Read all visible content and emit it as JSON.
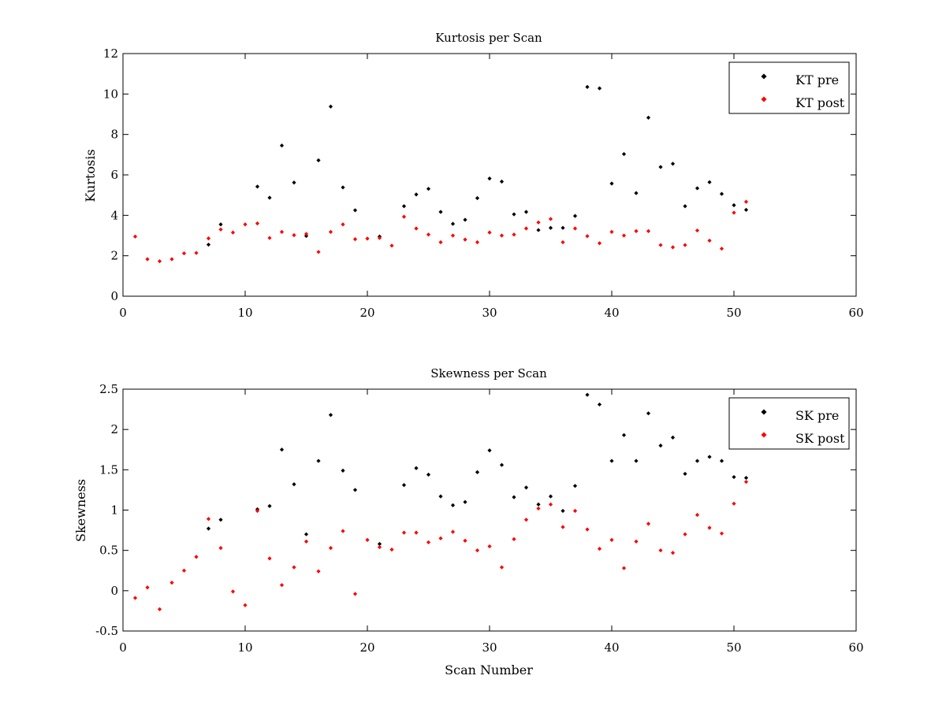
{
  "colors": {
    "pre": "#000000",
    "post": "#ff0000",
    "axes": "#000000",
    "background": "#ffffff"
  },
  "chart_data": [
    {
      "type": "scatter",
      "title": "Kurtosis per Scan",
      "xlabel": "",
      "ylabel": "Kurtosis",
      "xlim": [
        0,
        60
      ],
      "ylim": [
        0,
        12
      ],
      "xticks": [
        0,
        10,
        20,
        30,
        40,
        50,
        60
      ],
      "yticks": [
        0,
        2,
        4,
        6,
        8,
        10,
        12
      ],
      "grid": false,
      "legend": "top-right",
      "series": [
        {
          "name": "KT pre",
          "color": "#000000",
          "x": [
            7,
            8,
            11,
            12,
            13,
            14,
            15,
            16,
            17,
            18,
            19,
            21,
            23,
            24,
            25,
            26,
            27,
            28,
            29,
            30,
            31,
            32,
            33,
            34,
            35,
            36,
            37,
            38,
            39,
            40,
            41,
            42,
            43,
            44,
            45,
            46,
            47,
            48,
            49,
            50,
            51
          ],
          "y": [
            2.55,
            3.55,
            5.42,
            4.87,
            7.45,
            5.62,
            2.98,
            6.72,
            9.38,
            5.38,
            4.25,
            2.95,
            4.45,
            5.03,
            5.31,
            4.17,
            3.58,
            3.78,
            4.85,
            5.82,
            5.67,
            4.05,
            4.17,
            3.27,
            3.38,
            3.38,
            3.97,
            10.35,
            10.28,
            5.57,
            7.03,
            5.1,
            8.83,
            6.39,
            6.55,
            4.45,
            5.34,
            5.64,
            5.06,
            4.5,
            4.27
          ]
        },
        {
          "name": "KT post",
          "color": "#ff0000",
          "x": [
            1,
            2,
            3,
            4,
            5,
            6,
            7,
            8,
            9,
            10,
            11,
            12,
            13,
            14,
            15,
            16,
            17,
            18,
            19,
            20,
            21,
            22,
            23,
            24,
            25,
            26,
            27,
            28,
            29,
            30,
            31,
            32,
            33,
            34,
            35,
            36,
            37,
            38,
            39,
            40,
            41,
            42,
            43,
            44,
            45,
            46,
            47,
            48,
            49,
            50,
            51
          ],
          "y": [
            2.95,
            1.83,
            1.73,
            1.83,
            2.12,
            2.14,
            2.86,
            3.3,
            3.15,
            3.55,
            3.6,
            2.88,
            3.18,
            3.02,
            3.08,
            2.19,
            3.18,
            3.55,
            2.82,
            2.85,
            2.88,
            2.5,
            3.93,
            3.35,
            3.05,
            2.67,
            3.0,
            2.8,
            2.67,
            3.15,
            3.0,
            3.05,
            3.35,
            3.65,
            3.82,
            2.67,
            3.35,
            2.97,
            2.62,
            3.18,
            3.0,
            3.22,
            3.22,
            2.53,
            2.42,
            2.53,
            3.25,
            2.75,
            2.35,
            4.13,
            4.67
          ]
        }
      ]
    },
    {
      "type": "scatter",
      "title": "Skewness per Scan",
      "xlabel": "Scan Number",
      "ylabel": "Skewness",
      "xlim": [
        0,
        60
      ],
      "ylim": [
        -0.5,
        2.5
      ],
      "xticks": [
        0,
        10,
        20,
        30,
        40,
        50,
        60
      ],
      "yticks": [
        -0.5,
        0,
        0.5,
        1,
        1.5,
        2,
        2.5
      ],
      "ytick_labels": [
        "-0.5",
        "0",
        "0.5",
        "1",
        "1.5",
        "2",
        "2.5"
      ],
      "grid": false,
      "legend": "top-right",
      "series": [
        {
          "name": "SK pre",
          "color": "#000000",
          "x": [
            7,
            8,
            11,
            12,
            13,
            14,
            15,
            16,
            17,
            18,
            19,
            21,
            23,
            24,
            25,
            26,
            27,
            28,
            29,
            30,
            31,
            32,
            33,
            34,
            35,
            36,
            37,
            38,
            39,
            40,
            41,
            42,
            43,
            44,
            45,
            46,
            47,
            48,
            49,
            50,
            51
          ],
          "y": [
            0.77,
            0.88,
            1.01,
            1.05,
            1.75,
            1.32,
            0.7,
            1.61,
            2.18,
            1.49,
            1.25,
            0.58,
            1.31,
            1.52,
            1.44,
            1.17,
            1.06,
            1.1,
            1.47,
            1.74,
            1.56,
            1.16,
            1.28,
            1.07,
            1.17,
            0.99,
            1.3,
            2.43,
            2.31,
            1.61,
            1.93,
            1.61,
            2.2,
            1.8,
            1.9,
            1.45,
            1.61,
            1.66,
            1.61,
            1.41,
            1.4
          ]
        },
        {
          "name": "SK post",
          "color": "#ff0000",
          "x": [
            1,
            2,
            3,
            4,
            5,
            6,
            7,
            8,
            9,
            10,
            11,
            12,
            13,
            14,
            15,
            16,
            17,
            18,
            19,
            20,
            21,
            22,
            23,
            24,
            25,
            26,
            27,
            28,
            29,
            30,
            31,
            32,
            33,
            34,
            35,
            36,
            37,
            38,
            39,
            40,
            41,
            42,
            43,
            44,
            45,
            46,
            47,
            48,
            49,
            50,
            51
          ],
          "y": [
            -0.09,
            0.04,
            -0.23,
            0.1,
            0.25,
            0.42,
            0.89,
            0.53,
            -0.01,
            -0.18,
            0.99,
            0.4,
            0.07,
            0.29,
            0.61,
            0.24,
            0.53,
            0.74,
            -0.04,
            0.63,
            0.54,
            0.51,
            0.72,
            0.72,
            0.6,
            0.65,
            0.73,
            0.62,
            0.5,
            0.55,
            0.29,
            0.64,
            0.88,
            1.02,
            1.07,
            0.79,
            0.99,
            0.76,
            0.52,
            0.63,
            0.28,
            0.61,
            0.83,
            0.5,
            0.47,
            0.7,
            0.94,
            0.78,
            0.71,
            1.08,
            1.35
          ]
        }
      ]
    }
  ]
}
